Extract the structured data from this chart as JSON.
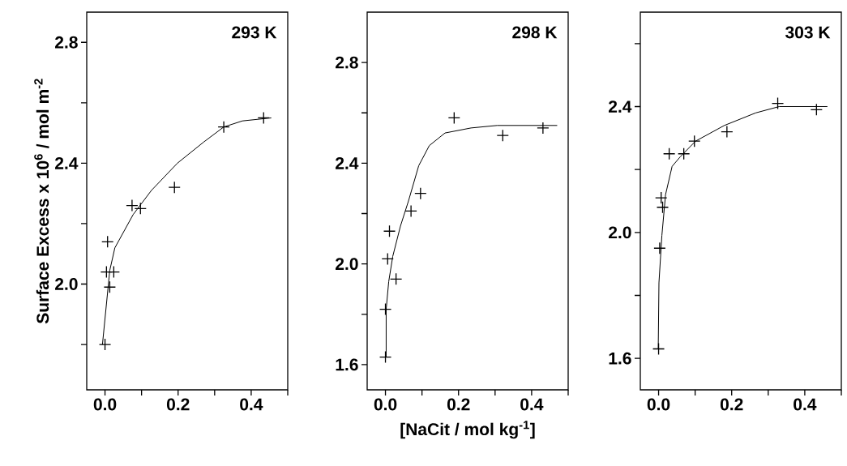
{
  "chart_data": [
    {
      "type": "scatter",
      "ylabel": "Surface Excess x 10$^{6}$ / mol m$^{-2}$",
      "annotations": [
        "293 K"
      ],
      "xlim": [
        -0.05,
        0.5
      ],
      "ylim": [
        1.65,
        2.9
      ],
      "xticks": [
        {
          "value": 0.0,
          "label": "0.0"
        },
        {
          "value": 0.1,
          "label": null
        },
        {
          "value": 0.2,
          "label": "0.2"
        },
        {
          "value": 0.3,
          "label": null
        },
        {
          "value": 0.4,
          "label": "0.4"
        },
        {
          "value": 0.5,
          "label": null
        }
      ],
      "yticks": [
        {
          "value": 1.8,
          "label": null
        },
        {
          "value": 2.0,
          "label": "2.0"
        },
        {
          "value": 2.2,
          "label": null
        },
        {
          "value": 2.4,
          "label": "2.4"
        },
        {
          "value": 2.6,
          "label": null
        },
        {
          "value": 2.8,
          "label": "2.8"
        }
      ],
      "series": [
        {
          "color": "#000000",
          "marker": "cross",
          "x": [
            0.0,
            0.004,
            0.024,
            0.013,
            0.007,
            0.074,
            0.097,
            0.19,
            0.325,
            0.434
          ],
          "values": [
            1.8,
            2.04,
            2.04,
            1.99,
            2.14,
            2.26,
            2.25,
            2.32,
            2.52,
            2.55
          ]
        },
        {
          "type": "line",
          "color": "#000000",
          "line_style": "solid",
          "x": [
            -0.007,
            0.013,
            0.027,
            0.077,
            0.127,
            0.198,
            0.27,
            0.325,
            0.376,
            0.455
          ],
          "values": [
            1.8,
            2.045,
            2.12,
            2.23,
            2.31,
            2.4,
            2.47,
            2.52,
            2.54,
            2.55
          ]
        }
      ]
    },
    {
      "type": "scatter",
      "xlabel": "[NaCit / mol kg$^{-1}$]",
      "annotations": [
        "298 K"
      ],
      "xlim": [
        -0.05,
        0.5
      ],
      "ylim": [
        1.5,
        3.0
      ],
      "xticks": [
        {
          "value": 0.0,
          "label": "0.0"
        },
        {
          "value": 0.1,
          "label": null
        },
        {
          "value": 0.2,
          "label": "0.2"
        },
        {
          "value": 0.3,
          "label": null
        },
        {
          "value": 0.4,
          "label": "0.4"
        },
        {
          "value": 0.5,
          "label": null
        }
      ],
      "yticks": [
        {
          "value": 1.6,
          "label": "1.6"
        },
        {
          "value": 1.8,
          "label": null
        },
        {
          "value": 2.0,
          "label": "2.0"
        },
        {
          "value": 2.2,
          "label": null
        },
        {
          "value": 2.4,
          "label": "2.4"
        },
        {
          "value": 2.6,
          "label": null
        },
        {
          "value": 2.8,
          "label": "2.8"
        }
      ],
      "series": [
        {
          "color": "#000000",
          "marker": "cross",
          "x": [
            0.0,
            0.0,
            0.006,
            0.011,
            0.029,
            0.07,
            0.096,
            0.188,
            0.321,
            0.431
          ],
          "values": [
            1.63,
            1.82,
            2.02,
            2.13,
            1.94,
            2.21,
            2.28,
            2.58,
            2.51,
            2.54
          ]
        },
        {
          "type": "line",
          "color": "#000000",
          "line_style": "solid",
          "x": [
            0.002,
            0.002,
            0.009,
            0.02,
            0.041,
            0.063,
            0.091,
            0.12,
            0.163,
            0.234,
            0.306,
            0.377,
            0.47
          ],
          "values": [
            1.63,
            1.82,
            1.93,
            2.03,
            2.15,
            2.25,
            2.39,
            2.47,
            2.52,
            2.54,
            2.55,
            2.55,
            2.55
          ]
        }
      ]
    },
    {
      "type": "scatter",
      "annotations": [
        "303 K"
      ],
      "xlim": [
        -0.05,
        0.5
      ],
      "ylim": [
        1.5,
        2.7
      ],
      "xticks": [
        {
          "value": 0.0,
          "label": "0.0"
        },
        {
          "value": 0.1,
          "label": null
        },
        {
          "value": 0.2,
          "label": "0.2"
        },
        {
          "value": 0.3,
          "label": null
        },
        {
          "value": 0.4,
          "label": "0.4"
        },
        {
          "value": 0.5,
          "label": null
        }
      ],
      "yticks": [
        {
          "value": 1.6,
          "label": "1.6"
        },
        {
          "value": 1.8,
          "label": null
        },
        {
          "value": 2.0,
          "label": "2.0"
        },
        {
          "value": 2.2,
          "label": null
        },
        {
          "value": 2.4,
          "label": "2.4"
        },
        {
          "value": 2.6,
          "label": null
        }
      ],
      "series": [
        {
          "color": "#000000",
          "marker": "cross",
          "x": [
            0.0,
            0.003,
            0.007,
            0.011,
            0.029,
            0.069,
            0.098,
            0.187,
            0.326,
            0.432
          ],
          "values": [
            1.63,
            1.95,
            2.11,
            2.08,
            2.25,
            2.25,
            2.29,
            2.32,
            2.41,
            2.39
          ]
        },
        {
          "type": "line",
          "color": "#000000",
          "line_style": "solid",
          "x": [
            -0.001,
            0.001,
            0.009,
            0.019,
            0.037,
            0.059,
            0.101,
            0.18,
            0.266,
            0.33,
            0.373,
            0.462
          ],
          "values": [
            1.63,
            1.84,
            1.99,
            2.12,
            2.21,
            2.24,
            2.29,
            2.34,
            2.38,
            2.4,
            2.4,
            2.4
          ]
        }
      ]
    }
  ]
}
